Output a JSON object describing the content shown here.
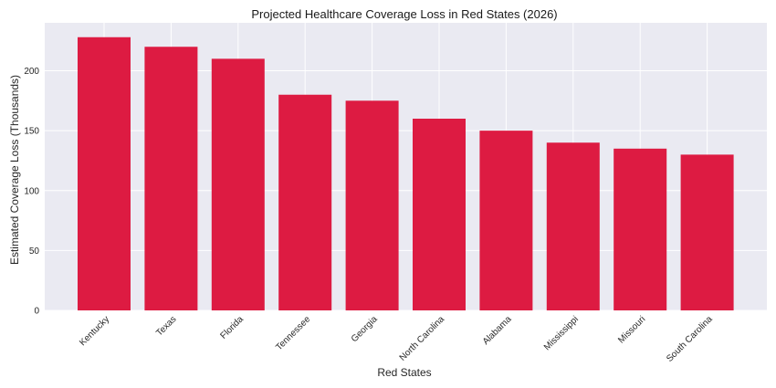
{
  "chart_data": {
    "type": "bar",
    "title": "Projected Healthcare Coverage Loss in Red States (2026)",
    "xlabel": "Red States",
    "ylabel": "Estimated Coverage Loss (Thousands)",
    "categories": [
      "Kentucky",
      "Texas",
      "Florida",
      "Tennessee",
      "Georgia",
      "North Carolina",
      "Alabama",
      "Mississippi",
      "Missouri",
      "South Carolina"
    ],
    "values": [
      228,
      220,
      210,
      180,
      175,
      160,
      150,
      140,
      135,
      130
    ],
    "ylim": [
      0,
      240
    ],
    "yticks": [
      0,
      50,
      100,
      150,
      200
    ],
    "ytick_labels": [
      "0",
      "50",
      "100",
      "150",
      "200"
    ],
    "grid": true,
    "bar_color": "#DC143C",
    "background_color": "#EAEAF2",
    "grid_color": "#FFFFFF"
  }
}
